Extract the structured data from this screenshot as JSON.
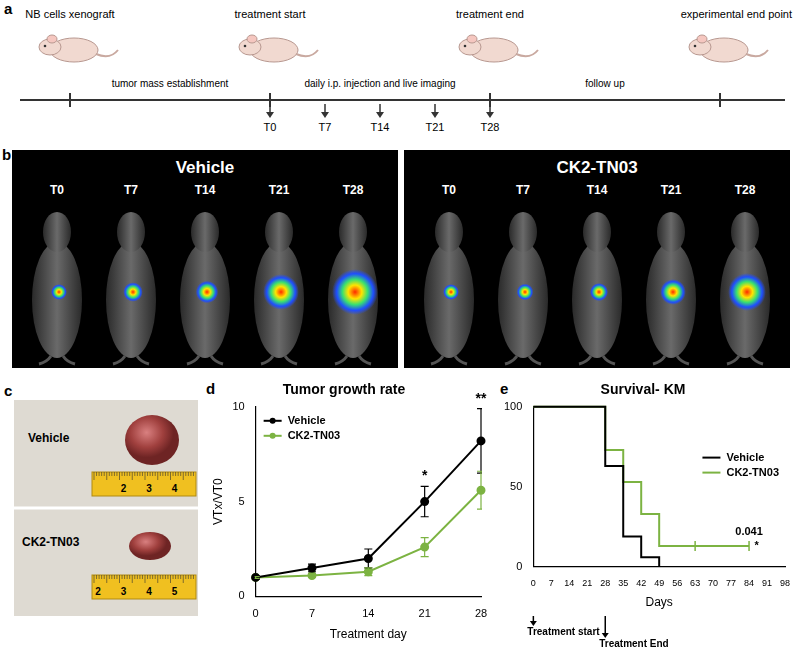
{
  "panel_labels": [
    "a",
    "b",
    "c",
    "d",
    "e"
  ],
  "timeline": {
    "stages": [
      "NB cells xenograft",
      "treatment start",
      "treatment end",
      "experimental end point"
    ],
    "intervals": [
      "tumor mass establishment",
      "daily i.p. injection and live imaging",
      "follow up"
    ],
    "timepoints": [
      "T0",
      "T7",
      "T14",
      "T21",
      "T28"
    ]
  },
  "imaging": {
    "groups": [
      "Vehicle",
      "CK2-TN03"
    ],
    "timepoints": [
      "T0",
      "T7",
      "T14",
      "T21",
      "T28"
    ]
  },
  "photo": {
    "rows": [
      {
        "label": "Vehicle",
        "ruler": [
          "2",
          "3",
          "4"
        ]
      },
      {
        "label": "CK2-TN03",
        "ruler": [
          "2",
          "3",
          "4",
          "5"
        ]
      }
    ]
  },
  "chart_data": [
    {
      "type": "line",
      "title": "Tumor growth rate",
      "x_label": "Treatment day",
      "y_label": "VTx/VT0",
      "x": [
        0,
        7,
        14,
        21,
        28
      ],
      "series": [
        {
          "name": "Vehicle",
          "color": "#000000",
          "marker": "circle",
          "values": [
            1,
            1.5,
            2.0,
            5.0,
            8.2
          ],
          "errors": [
            0.1,
            0.2,
            0.5,
            0.8,
            1.7
          ]
        },
        {
          "name": "CK2-TN03",
          "color": "#7cb342",
          "marker": "circle",
          "values": [
            1,
            1.1,
            1.3,
            2.6,
            5.6
          ],
          "errors": [
            0.05,
            0.1,
            0.2,
            0.5,
            1.0
          ]
        }
      ],
      "xlim": [
        0,
        28
      ],
      "xticks": [
        0,
        7,
        14,
        21,
        28
      ],
      "ylim": [
        0,
        10
      ],
      "yticks": [
        0,
        5,
        10
      ],
      "grid": false,
      "legend": "upper left",
      "annotations": [
        {
          "text": "*",
          "x": 21
        },
        {
          "text": "**",
          "x": 28
        }
      ]
    },
    {
      "type": "step",
      "title": "Survival- KM",
      "x_label": "Days",
      "series": [
        {
          "name": "Vehicle",
          "color": "#000000",
          "marker": "none",
          "x": [
            0,
            28,
            35,
            42,
            49
          ],
          "values": [
            100,
            63,
            19,
            6,
            0
          ]
        },
        {
          "name": "CK2-TN03",
          "color": "#7cb342",
          "marker": "none",
          "x": [
            0,
            28,
            35,
            42,
            49,
            84
          ],
          "values": [
            100,
            73,
            53,
            33,
            13,
            13
          ],
          "censored_x": [
            63,
            84
          ]
        }
      ],
      "xlim": [
        0,
        98
      ],
      "xticks": [
        0,
        7,
        14,
        21,
        28,
        35,
        42,
        49,
        56,
        63,
        70,
        77,
        84,
        91,
        98
      ],
      "ylim": [
        0,
        100
      ],
      "yticks": [
        0,
        50,
        100
      ],
      "grid": false,
      "legend": "right",
      "annotations": [
        {
          "text": "0.041",
          "x": 84,
          "y": 22
        },
        {
          "text": "*",
          "x": 87,
          "y": 13
        }
      ],
      "markers": [
        {
          "text": "Treatment start",
          "x": 0
        },
        {
          "text": "Treatment End",
          "x": 28
        }
      ]
    }
  ]
}
